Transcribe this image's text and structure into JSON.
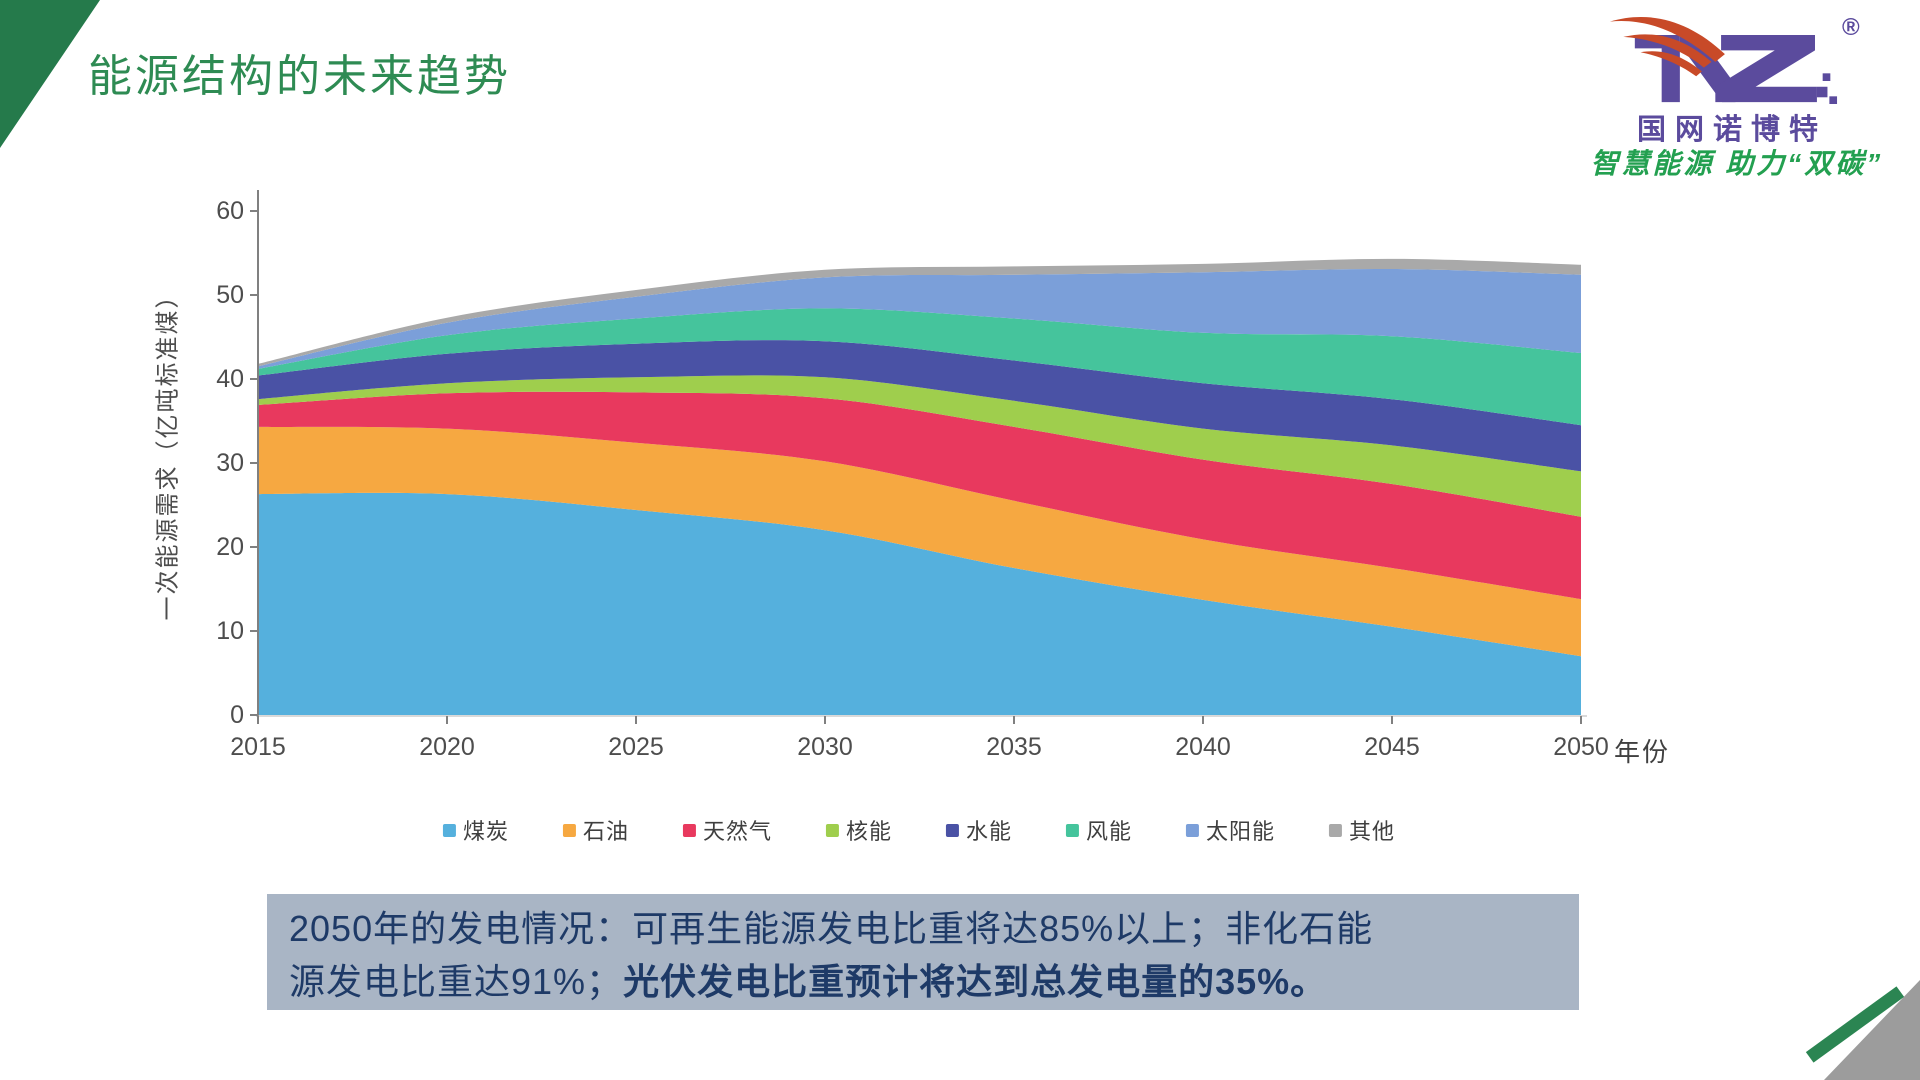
{
  "slide": {
    "title": "能源结构的未来趋势",
    "logo": {
      "registered": "®",
      "brand_name": "国网诺博特",
      "tagline": "智慧能源 助力“双碳”"
    },
    "footer_note": {
      "line1": "2050年的发电情况：可再生能源发电比重将达85%以上；非化石能",
      "line2_regular": "源发电比重达91%；",
      "line2_bold": "光伏发电比重预计将达到总发电量的35%。"
    }
  },
  "chart_data": {
    "type": "area",
    "stacked": true,
    "title": "",
    "xlabel": "年份",
    "ylabel": "一次能源需求（亿吨标准煤）",
    "x": [
      2015,
      2020,
      2025,
      2030,
      2035,
      2040,
      2045,
      2050
    ],
    "ylim": [
      0,
      60
    ],
    "yticks": [
      0,
      10,
      20,
      30,
      40,
      50,
      60
    ],
    "grid": false,
    "legend_position": "bottom",
    "axis_color": "#808080",
    "series": [
      {
        "name": "煤炭",
        "color": "#55b0dd",
        "values": [
          26.3,
          26.3,
          24.4,
          22.0,
          17.5,
          13.7,
          10.5,
          7.0
        ]
      },
      {
        "name": "石油",
        "color": "#f6a841",
        "values": [
          8.0,
          7.8,
          8.0,
          8.2,
          8.0,
          7.2,
          7.0,
          6.8
        ]
      },
      {
        "name": "天然气",
        "color": "#e8395e",
        "values": [
          2.6,
          4.2,
          6.0,
          7.5,
          8.8,
          9.5,
          10.0,
          9.8
        ]
      },
      {
        "name": "核能",
        "color": "#9fce4d",
        "values": [
          0.7,
          1.2,
          1.8,
          2.5,
          3.1,
          3.7,
          4.6,
          5.4
        ]
      },
      {
        "name": "水能",
        "color": "#4a52a5",
        "values": [
          2.8,
          3.5,
          4.0,
          4.3,
          4.8,
          5.4,
          5.5,
          5.5
        ]
      },
      {
        "name": "风能",
        "color": "#45c49c",
        "values": [
          0.8,
          2.2,
          3.0,
          3.9,
          5.0,
          6.0,
          7.5,
          8.6
        ]
      },
      {
        "name": "太阳能",
        "color": "#7b9fd9",
        "values": [
          0.3,
          1.5,
          2.6,
          3.7,
          5.2,
          7.2,
          8.0,
          9.3
        ]
      },
      {
        "name": "其他",
        "color": "#a9a9a9",
        "values": [
          0.3,
          0.6,
          0.8,
          0.9,
          1.0,
          1.0,
          1.2,
          1.2
        ]
      }
    ]
  }
}
